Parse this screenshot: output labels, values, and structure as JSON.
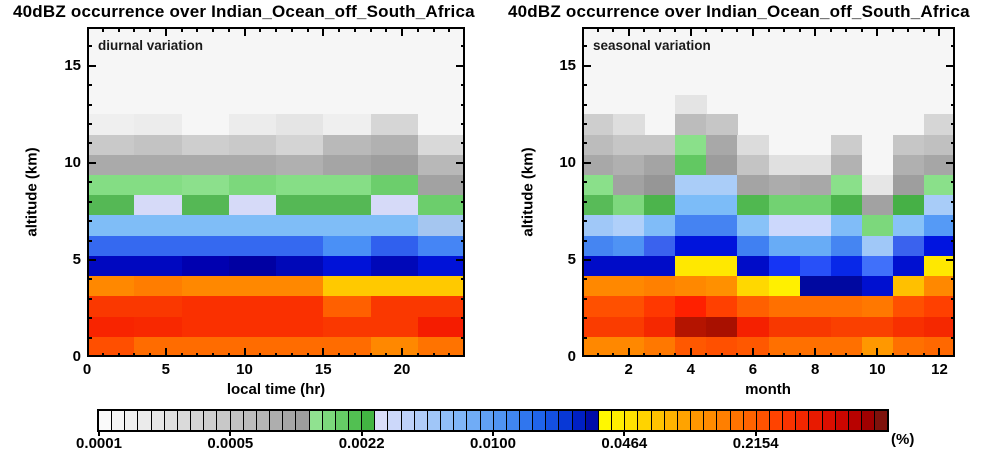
{
  "titles": {
    "left": "40dBZ occurrence over Indian_Ocean_off_South_Africa",
    "right": "40dBZ occurrence over Indian_Ocean_off_South_Africa"
  },
  "colorbar": {
    "unit_label": "(%)",
    "tick_labels": [
      "0.0001",
      "0.0005",
      "0.0022",
      "0.0100",
      "0.0464",
      "0.2154"
    ],
    "scale": "log",
    "colors": [
      "#fafafa",
      "#f5f5f5",
      "#f0f0f0",
      "#ebebeb",
      "#e6e6e6",
      "#e0e0e0",
      "#dadada",
      "#d4d4d4",
      "#cecece",
      "#c8c8c8",
      "#c2c2c2",
      "#bcbcbc",
      "#b5b5b5",
      "#aeaeae",
      "#a6a6a6",
      "#9e9e9e",
      "#90e290",
      "#7cd87c",
      "#66cc66",
      "#52c052",
      "#42b442",
      "#dadefa",
      "#ccd8fa",
      "#bed2fa",
      "#b0ccf8",
      "#a0c6f8",
      "#90bef8",
      "#80b6f8",
      "#70acf6",
      "#60a0f4",
      "#5094f2",
      "#4086f0",
      "#3076ee",
      "#2064ea",
      "#1450e2",
      "#0838d6",
      "#0020c4",
      "#000ca8",
      "#fff800",
      "#ffef00",
      "#ffe200",
      "#ffd300",
      "#ffc300",
      "#ffb300",
      "#ffa300",
      "#ff9700",
      "#ff8b00",
      "#ff7f00",
      "#ff7300",
      "#ff6300",
      "#ff5300",
      "#ff4300",
      "#fa3300",
      "#f22700",
      "#e81a00",
      "#dc0e00",
      "#cc0600",
      "#b80200",
      "#a00000",
      "#7e120c"
    ]
  },
  "chart_data": [
    {
      "type": "heatmap",
      "name": "diurnal",
      "annotation": "diurnal variation",
      "xlabel": "local time (hr)",
      "ylabel": "altitude (km)",
      "x_range": [
        0,
        24
      ],
      "x_major_ticks": [
        0,
        5,
        10,
        15,
        20
      ],
      "x_tick_labels": [
        "0",
        "5",
        "10",
        "15",
        "20"
      ],
      "x_minor_step": 1,
      "y_range": [
        0,
        17
      ],
      "y_major_ticks": [
        0,
        5,
        10,
        15
      ],
      "y_tick_labels": [
        "0",
        "5",
        "10",
        "15"
      ],
      "y_minor_step": 1,
      "col_edges": [
        0,
        3,
        6,
        9,
        12,
        15,
        18,
        21,
        24
      ],
      "rows": [
        {
          "alt_top": 12.5,
          "alt_bottom": 11.458,
          "colors": [
            "#efefef",
            "#ececec",
            null,
            "#ececec",
            "#e5e5e5",
            "#efefef",
            "#d6d6d6",
            null
          ]
        },
        {
          "alt_top": 11.458,
          "alt_bottom": 10.417,
          "colors": [
            "#c9c9c9",
            "#c3c3c3",
            "#cecece",
            "#c9c9c9",
            "#d4d4d4",
            "#b9b9b9",
            "#b1b1b1",
            "#d9d9d9"
          ]
        },
        {
          "alt_top": 10.417,
          "alt_bottom": 9.375,
          "colors": [
            "#aaaaaa",
            "#aaaaaa",
            "#aaaaaa",
            "#aaaaaa",
            "#b0b0b0",
            "#a5a5a5",
            "#9e9e9e",
            "#b8b8b8"
          ]
        },
        {
          "alt_top": 9.375,
          "alt_bottom": 8.333,
          "colors": [
            "#84dd84",
            "#84dd84",
            "#8ce08c",
            "#7cd87c",
            "#86de86",
            "#86de86",
            "#6cce6c",
            "#a2a2a2"
          ]
        },
        {
          "alt_top": 8.333,
          "alt_bottom": 7.292,
          "colors": [
            "#55b855",
            "#d6daf8",
            "#55b855",
            "#d6daf8",
            "#55b855",
            "#55b855",
            "#d6daf8",
            "#6cce6c"
          ]
        },
        {
          "alt_top": 7.292,
          "alt_bottom": 6.25,
          "colors": [
            "#7fbdf7",
            "#7fbdf7",
            "#7fbdf7",
            "#7fbdf7",
            "#7fbdf7",
            "#7fbdf7",
            "#7fbdf7",
            "#a5c6f0"
          ]
        },
        {
          "alt_top": 6.25,
          "alt_bottom": 5.208,
          "colors": [
            "#3569f0",
            "#3569f0",
            "#3569f0",
            "#3569f0",
            "#3569f0",
            "#4a90f6",
            "#3060ee",
            "#4585f5"
          ]
        },
        {
          "alt_top": 5.208,
          "alt_bottom": 4.167,
          "colors": [
            "#0008c0",
            "#0008c0",
            "#0000b0",
            "#0000a2",
            "#0008b8",
            "#0012d8",
            "#0008b8",
            "#0012d8"
          ]
        },
        {
          "alt_top": 4.167,
          "alt_bottom": 3.125,
          "colors": [
            "#ff8800",
            "#ff7d00",
            "#ff8800",
            "#ff8800",
            "#ff8800",
            "#ffc900",
            "#ffc900",
            "#ffc900"
          ]
        },
        {
          "alt_top": 3.125,
          "alt_bottom": 2.083,
          "colors": [
            "#fa3800",
            "#fa3800",
            "#fa3000",
            "#fa3000",
            "#fa3000",
            "#ff6000",
            "#fa3800",
            "#fa3800"
          ]
        },
        {
          "alt_top": 2.083,
          "alt_bottom": 1.042,
          "colors": [
            "#f82400",
            "#f82800",
            "#fa3000",
            "#fa3000",
            "#fa3000",
            "#fa3800",
            "#fa3800",
            "#f51c00"
          ]
        },
        {
          "alt_top": 1.042,
          "alt_bottom": 0,
          "colors": [
            "#ff4f00",
            "#ff6c00",
            "#ff6c00",
            "#ff6c00",
            "#ff6c00",
            "#ff6c00",
            "#ff8800",
            "#ff7300"
          ]
        }
      ]
    },
    {
      "type": "heatmap",
      "name": "seasonal",
      "annotation": "seasonal variation",
      "xlabel": "month",
      "ylabel": "altitude (km)",
      "x_range": [
        0.5,
        12.5
      ],
      "x_major_ticks": [
        2,
        4,
        6,
        8,
        10,
        12
      ],
      "x_tick_labels": [
        "2",
        "4",
        "6",
        "8",
        "10",
        "12"
      ],
      "x_minor_step": 0.5,
      "y_range": [
        0,
        17
      ],
      "y_major_ticks": [
        0,
        5,
        10,
        15
      ],
      "y_tick_labels": [
        "0",
        "5",
        "10",
        "15"
      ],
      "y_minor_step": 1,
      "col_edges": [
        0.5,
        1.5,
        2.5,
        3.5,
        4.5,
        5.5,
        6.5,
        7.5,
        8.5,
        9.5,
        10.5,
        11.5,
        12.5
      ],
      "rows": [
        {
          "alt_top": 13.5,
          "alt_bottom": 12.5,
          "colors": [
            null,
            null,
            null,
            "#e4e4e4",
            null,
            null,
            null,
            null,
            null,
            null,
            null,
            null
          ]
        },
        {
          "alt_top": 12.5,
          "alt_bottom": 11.458,
          "colors": [
            "#cecece",
            "#dedede",
            null,
            "#bcbcbc",
            "#c6c6c6",
            null,
            null,
            null,
            null,
            null,
            null,
            "#d6d6d6"
          ]
        },
        {
          "alt_top": 11.458,
          "alt_bottom": 10.417,
          "colors": [
            "#bcbcbc",
            "#c6c6c6",
            "#c6c6c6",
            "#8ae08a",
            "#a8a8a8",
            "#dcdcdc",
            null,
            null,
            "#cccccc",
            null,
            "#c6c6c6",
            "#c0c0c0"
          ]
        },
        {
          "alt_top": 10.417,
          "alt_bottom": 9.375,
          "colors": [
            "#a8a8a8",
            "#b0b0b0",
            "#a4a4a4",
            "#62c862",
            "#9c9c9c",
            "#c4c4c4",
            "#e0e0e0",
            "#e0e0e0",
            "#b2b2b2",
            null,
            "#b0b0b0",
            "#a6a6a6"
          ]
        },
        {
          "alt_top": 9.375,
          "alt_bottom": 8.333,
          "colors": [
            "#8ae08a",
            "#a2a2a2",
            "#969696",
            "#aacdf8",
            "#aacdf8",
            "#a4a4a4",
            "#acacac",
            "#a8a8a8",
            "#8ae08a",
            "#e6e6e6",
            "#9e9e9e",
            "#8ae08a"
          ]
        },
        {
          "alt_top": 8.333,
          "alt_bottom": 7.292,
          "colors": [
            "#58bb58",
            "#7ed87e",
            "#4cb44c",
            "#7cbcf8",
            "#7cbcf8",
            "#50b850",
            "#72d272",
            "#72d272",
            "#4cb44c",
            "#a2a2a2",
            "#46b046",
            "#a8ccf8"
          ]
        },
        {
          "alt_top": 7.292,
          "alt_bottom": 6.25,
          "colors": [
            "#a0c8f8",
            "#b0d0fa",
            "#80bcf8",
            "#4583f2",
            "#4583f2",
            "#88c2f8",
            "#ccd8fc",
            "#ccd8fc",
            "#80bcf8",
            "#7cd87c",
            "#88c2f8",
            "#559af6"
          ]
        },
        {
          "alt_top": 6.25,
          "alt_bottom": 5.208,
          "colors": [
            "#4585f2",
            "#4f93f4",
            "#3a62ee",
            "#0014dc",
            "#0014dc",
            "#4080f2",
            "#68acf6",
            "#68acf6",
            "#4585f2",
            "#a0c8f8",
            "#3a62ee",
            "#0014e0"
          ]
        },
        {
          "alt_top": 5.208,
          "alt_bottom": 4.167,
          "colors": [
            "#000cc8",
            "#000cc8",
            "#000cc8",
            "#ffe800",
            "#ffe800",
            "#000cc8",
            "#1535f5",
            "#2850f8",
            "#0828e8",
            "#4070fa",
            "#0010d0",
            "#ffe800"
          ]
        },
        {
          "alt_top": 4.167,
          "alt_bottom": 3.125,
          "colors": [
            "#ff8800",
            "#ff8800",
            "#ff8000",
            "#ff8800",
            "#ff9000",
            "#ffd800",
            "#fff000",
            "#0008a0",
            "#0008a0",
            "#0010d0",
            "#ffc000",
            "#ff8800"
          ]
        },
        {
          "alt_top": 3.125,
          "alt_bottom": 2.083,
          "colors": [
            "#ff5000",
            "#ff5000",
            "#ff3800",
            "#ff2000",
            "#ff4000",
            "#ff6000",
            "#ff7000",
            "#ff7000",
            "#ff7000",
            "#ff7800",
            "#ff5000",
            "#ff4000"
          ]
        },
        {
          "alt_top": 2.083,
          "alt_bottom": 1.042,
          "colors": [
            "#fa3c00",
            "#fa3c00",
            "#f52800",
            "#b41400",
            "#a81000",
            "#f52000",
            "#f83800",
            "#f83800",
            "#fa4000",
            "#fa4000",
            "#f83000",
            "#f52800"
          ]
        },
        {
          "alt_top": 1.042,
          "alt_bottom": 0,
          "colors": [
            "#ff8800",
            "#ff8800",
            "#ff7800",
            "#ff5800",
            "#ff5000",
            "#ff5800",
            "#ff7000",
            "#ff7000",
            "#ff7000",
            "#ff9800",
            "#ff7000",
            "#ff6800"
          ]
        }
      ]
    }
  ]
}
